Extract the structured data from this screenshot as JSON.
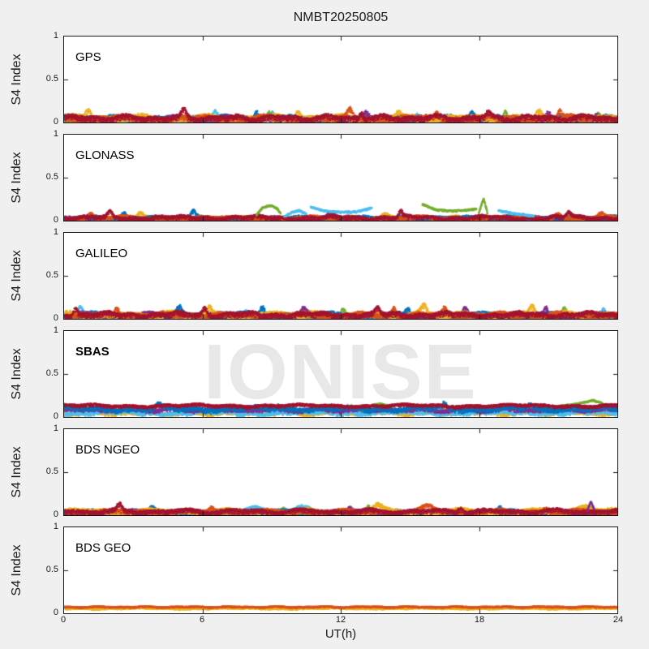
{
  "figure": {
    "title": "NMBT20250805",
    "xlabel": "UT(h)",
    "ylabel": "S4 Index",
    "watermark": "IONISE",
    "x_tick_labels": [
      "0",
      "6",
      "12",
      "18",
      "24"
    ],
    "y_tick_labels": [
      "1",
      "0.5",
      "0"
    ],
    "bg_color": "#f0f0f0",
    "panel_bg": "#ffffff",
    "axis_color": "#151515",
    "watermark_color": "#e8e8e8"
  },
  "chart_data": {
    "type": "scatter",
    "title": "NMBT20250805",
    "xlabel": "UT(h)",
    "ylabel": "S4 Index",
    "x_range": [
      0,
      24
    ],
    "y_range": [
      0,
      1
    ],
    "x_ticks": [
      0,
      6,
      12,
      18,
      24
    ],
    "y_ticks": [
      0,
      0.5,
      1
    ],
    "grid": false,
    "legend": "none",
    "palette": [
      "#0072BD",
      "#D95319",
      "#EDB120",
      "#7E2F8E",
      "#77AC30",
      "#4DBEEE",
      "#A2142F"
    ],
    "panels": [
      {
        "label": "GPS",
        "bold": false,
        "seed": 11,
        "series": [
          {
            "c": "#4DBEEE",
            "t": "band",
            "base": 0.045,
            "amp": 0.028,
            "spikes": [
              [
                6.55,
                0.1,
                0.12
              ],
              [
                9.0,
                0.07,
                0.1
              ],
              [
                15.3,
                0.05,
                0.1
              ]
            ]
          },
          {
            "c": "#77AC30",
            "t": "band",
            "base": 0.04,
            "amp": 0.025,
            "spikes": [
              [
                8.9,
                0.08,
                0.1
              ],
              [
                19.15,
                0.11,
                0.08
              ],
              [
                23.2,
                0.06,
                0.1
              ]
            ]
          },
          {
            "c": "#0072BD",
            "t": "band",
            "base": 0.055,
            "amp": 0.028,
            "spikes": [
              [
                8.35,
                0.1,
                0.09
              ],
              [
                17.7,
                0.07,
                0.1
              ]
            ]
          },
          {
            "c": "#7E2F8E",
            "t": "band",
            "base": 0.05,
            "amp": 0.028,
            "spikes": [
              [
                13.1,
                0.06,
                0.1
              ],
              [
                21.0,
                0.08,
                0.09
              ],
              [
                23.1,
                0.07,
                0.08
              ]
            ]
          },
          {
            "c": "#EDB120",
            "t": "band",
            "base": 0.06,
            "amp": 0.032,
            "spikes": [
              [
                1.05,
                0.1,
                0.12
              ],
              [
                10.15,
                0.09,
                0.1
              ],
              [
                14.5,
                0.06,
                0.1
              ],
              [
                20.6,
                0.07,
                0.1
              ]
            ]
          },
          {
            "c": "#D95319",
            "t": "band",
            "base": 0.055,
            "amp": 0.03,
            "spikes": [
              [
                12.4,
                0.09,
                0.1
              ],
              [
                16.2,
                0.06,
                0.1
              ],
              [
                21.5,
                0.08,
                0.09
              ]
            ]
          },
          {
            "c": "#A2142F",
            "t": "band",
            "base": 0.06,
            "amp": 0.03,
            "spikes": [
              [
                5.2,
                0.08,
                0.1
              ],
              [
                12.9,
                0.07,
                0.08
              ],
              [
                18.4,
                0.06,
                0.1
              ]
            ]
          }
        ]
      },
      {
        "label": "GLONASS",
        "bold": false,
        "seed": 22,
        "series": [
          {
            "c": "#4DBEEE",
            "t": "band",
            "base": 0.03,
            "amp": 0.018,
            "spikes": []
          },
          {
            "c": "#EDB120",
            "t": "band",
            "base": 0.032,
            "amp": 0.02,
            "spikes": [
              [
                3.3,
                0.05,
                0.12
              ],
              [
                13.9,
                0.05,
                0.15
              ]
            ]
          },
          {
            "c": "#77AC30",
            "t": "band",
            "base": 0.025,
            "amp": 0.015,
            "spikes": []
          },
          {
            "c": "#7E2F8E",
            "t": "band",
            "base": 0.03,
            "amp": 0.02,
            "spikes": [
              [
                11.6,
                0.05,
                0.15
              ],
              [
                12.3,
                0.04,
                0.1
              ]
            ]
          },
          {
            "c": "#0072BD",
            "t": "band",
            "base": 0.035,
            "amp": 0.022,
            "spikes": [
              [
                2.6,
                0.06,
                0.1
              ],
              [
                5.6,
                0.07,
                0.09
              ],
              [
                19.9,
                0.04,
                0.2
              ]
            ]
          },
          {
            "c": "#D95319",
            "t": "band",
            "base": 0.035,
            "amp": 0.02,
            "spikes": [
              [
                1.15,
                0.05,
                0.1
              ],
              [
                21.4,
                0.06,
                0.15
              ],
              [
                23.3,
                0.05,
                0.1
              ]
            ]
          },
          {
            "c": "#A2142F",
            "t": "band",
            "base": 0.04,
            "amp": 0.022,
            "spikes": [
              [
                2.0,
                0.06,
                0.1
              ],
              [
                14.6,
                0.07,
                0.08
              ],
              [
                21.9,
                0.06,
                0.1
              ]
            ]
          },
          {
            "c": "#77AC30",
            "t": "curve",
            "pts": [
              [
                8.35,
                0.07
              ],
              [
                8.6,
                0.15
              ],
              [
                8.95,
                0.18
              ],
              [
                9.25,
                0.14
              ],
              [
                9.4,
                0.08
              ]
            ]
          },
          {
            "c": "#4DBEEE",
            "t": "curve",
            "pts": [
              [
                9.55,
                0.05
              ],
              [
                9.9,
                0.1
              ],
              [
                10.2,
                0.12
              ],
              [
                10.5,
                0.08
              ]
            ]
          },
          {
            "c": "#4DBEEE",
            "t": "curve",
            "pts": [
              [
                10.7,
                0.16
              ],
              [
                11.3,
                0.115
              ],
              [
                12.0,
                0.1
              ],
              [
                12.7,
                0.105
              ],
              [
                13.35,
                0.15
              ]
            ]
          },
          {
            "c": "#77AC30",
            "t": "curve",
            "pts": [
              [
                15.55,
                0.19
              ],
              [
                16.1,
                0.13
              ],
              [
                16.7,
                0.115
              ],
              [
                17.3,
                0.12
              ],
              [
                17.9,
                0.14
              ]
            ]
          },
          {
            "c": "#77AC30",
            "t": "curve",
            "pts": [
              [
                18.0,
                0.1
              ],
              [
                18.12,
                0.2
              ],
              [
                18.2,
                0.26
              ],
              [
                18.3,
                0.16
              ],
              [
                18.38,
                0.07
              ]
            ]
          },
          {
            "c": "#4DBEEE",
            "t": "curve",
            "pts": [
              [
                18.85,
                0.12
              ],
              [
                19.3,
                0.095
              ],
              [
                19.9,
                0.07
              ],
              [
                20.4,
                0.055
              ]
            ]
          }
        ]
      },
      {
        "label": "GALILEO",
        "bold": false,
        "seed": 33,
        "series": [
          {
            "c": "#4DBEEE",
            "t": "band",
            "base": 0.045,
            "amp": 0.026,
            "spikes": [
              [
                0.7,
                0.08,
                0.1
              ],
              [
                7.9,
                0.07,
                0.1
              ],
              [
                23.4,
                0.09,
                0.09
              ]
            ]
          },
          {
            "c": "#77AC30",
            "t": "band",
            "base": 0.04,
            "amp": 0.024,
            "spikes": [
              [
                12.1,
                0.07,
                0.1
              ],
              [
                21.7,
                0.08,
                0.09
              ]
            ]
          },
          {
            "c": "#0072BD",
            "t": "band",
            "base": 0.05,
            "amp": 0.028,
            "spikes": [
              [
                5.0,
                0.08,
                0.1
              ],
              [
                8.6,
                0.09,
                0.09
              ],
              [
                14.9,
                0.07,
                0.1
              ]
            ]
          },
          {
            "c": "#7E2F8E",
            "t": "band",
            "base": 0.05,
            "amp": 0.026,
            "spikes": [
              [
                10.4,
                0.07,
                0.1
              ],
              [
                17.4,
                0.08,
                0.09
              ],
              [
                20.9,
                0.09,
                0.08
              ]
            ]
          },
          {
            "c": "#EDB120",
            "t": "band",
            "base": 0.055,
            "amp": 0.03,
            "spikes": [
              [
                6.3,
                0.07,
                0.1
              ],
              [
                15.6,
                0.09,
                0.12
              ],
              [
                20.3,
                0.1,
                0.1
              ]
            ]
          },
          {
            "c": "#D95319",
            "t": "band",
            "base": 0.05,
            "amp": 0.028,
            "spikes": [
              [
                2.3,
                0.08,
                0.1
              ],
              [
                14.3,
                0.09,
                0.09
              ],
              [
                16.5,
                0.07,
                0.1
              ]
            ]
          },
          {
            "c": "#A2142F",
            "t": "band",
            "base": 0.055,
            "amp": 0.028,
            "spikes": [
              [
                0.5,
                0.09,
                0.08
              ],
              [
                6.1,
                0.08,
                0.09
              ],
              [
                13.6,
                0.07,
                0.09
              ]
            ]
          }
        ]
      },
      {
        "label": "SBAS",
        "bold": true,
        "seed": 44,
        "series": [
          {
            "c": "#EDB120",
            "t": "band",
            "base": 0.05,
            "amp": 0.018,
            "spikes": []
          },
          {
            "c": "#4DBEEE",
            "t": "band",
            "base": 0.055,
            "amp": 0.02,
            "spikes": []
          },
          {
            "c": "#7E2F8E",
            "t": "band",
            "base": 0.09,
            "amp": 0.02,
            "spikes": []
          },
          {
            "c": "#0072BD",
            "t": "band",
            "base": 0.105,
            "amp": 0.025,
            "spikes": [
              [
                4.1,
                0.04,
                0.1
              ],
              [
                9.3,
                0.04,
                0.08
              ],
              [
                16.5,
                0.05,
                0.08
              ],
              [
                20.2,
                0.04,
                0.1
              ]
            ]
          },
          {
            "c": "#77AC30",
            "t": "curve",
            "pts": [
              [
                13.25,
                0.13
              ],
              [
                13.7,
                0.155
              ],
              [
                14.1,
                0.13
              ]
            ]
          },
          {
            "c": "#77AC30",
            "t": "curve",
            "pts": [
              [
                21.3,
                0.12
              ],
              [
                22.3,
                0.155
              ],
              [
                22.95,
                0.195
              ],
              [
                23.35,
                0.16
              ]
            ]
          },
          {
            "c": "#A2142F",
            "t": "band",
            "base": 0.135,
            "amp": 0.016,
            "spikes": []
          }
        ]
      },
      {
        "label": "BDS NGEO",
        "bold": false,
        "seed": 55,
        "series": [
          {
            "c": "#4DBEEE",
            "t": "band",
            "base": 0.04,
            "amp": 0.025,
            "spikes": [
              [
                8.5,
                0.05,
                0.5
              ],
              [
                10.5,
                0.05,
                0.4
              ]
            ]
          },
          {
            "c": "#77AC30",
            "t": "band",
            "base": 0.035,
            "amp": 0.02,
            "spikes": [
              [
                9.5,
                0.05,
                0.12
              ],
              [
                13.2,
                0.06,
                0.1
              ]
            ]
          },
          {
            "c": "#0072BD",
            "t": "band",
            "base": 0.04,
            "amp": 0.022,
            "spikes": [
              [
                3.8,
                0.05,
                0.1
              ],
              [
                18.9,
                0.05,
                0.1
              ]
            ]
          },
          {
            "c": "#7E2F8E",
            "t": "band",
            "base": 0.04,
            "amp": 0.022,
            "spikes": [
              [
                12.4,
                0.05,
                0.1
              ]
            ]
          },
          {
            "c": "#EDB120",
            "t": "band",
            "base": 0.05,
            "amp": 0.026,
            "spikes": [
              [
                13.6,
                0.06,
                0.2
              ],
              [
                22.6,
                0.06,
                0.3
              ]
            ]
          },
          {
            "c": "#D95319",
            "t": "band",
            "base": 0.045,
            "amp": 0.024,
            "spikes": [
              [
                6.4,
                0.05,
                0.1
              ],
              [
                15.8,
                0.06,
                0.25
              ],
              [
                20.9,
                0.05,
                0.1
              ]
            ]
          },
          {
            "c": "#A2142F",
            "t": "band",
            "base": 0.05,
            "amp": 0.024,
            "spikes": [
              [
                2.4,
                0.07,
                0.09
              ],
              [
                17.2,
                0.05,
                0.1
              ]
            ]
          },
          {
            "c": "#7E2F8E",
            "t": "curve",
            "pts": [
              [
                22.7,
                0.06
              ],
              [
                22.85,
                0.16
              ],
              [
                23.0,
                0.07
              ]
            ]
          }
        ]
      },
      {
        "label": "BDS GEO",
        "bold": false,
        "seed": 66,
        "series": [
          {
            "c": "#4DBEEE",
            "t": "band",
            "base": 0.065,
            "amp": 0.005,
            "spikes": []
          },
          {
            "c": "#0072BD",
            "t": "band",
            "base": 0.068,
            "amp": 0.004,
            "spikes": []
          },
          {
            "c": "#EDB120",
            "t": "band",
            "base": 0.057,
            "amp": 0.007,
            "spikes": []
          },
          {
            "c": "#D95319",
            "t": "band",
            "base": 0.075,
            "amp": 0.007,
            "spikes": []
          }
        ]
      }
    ]
  }
}
